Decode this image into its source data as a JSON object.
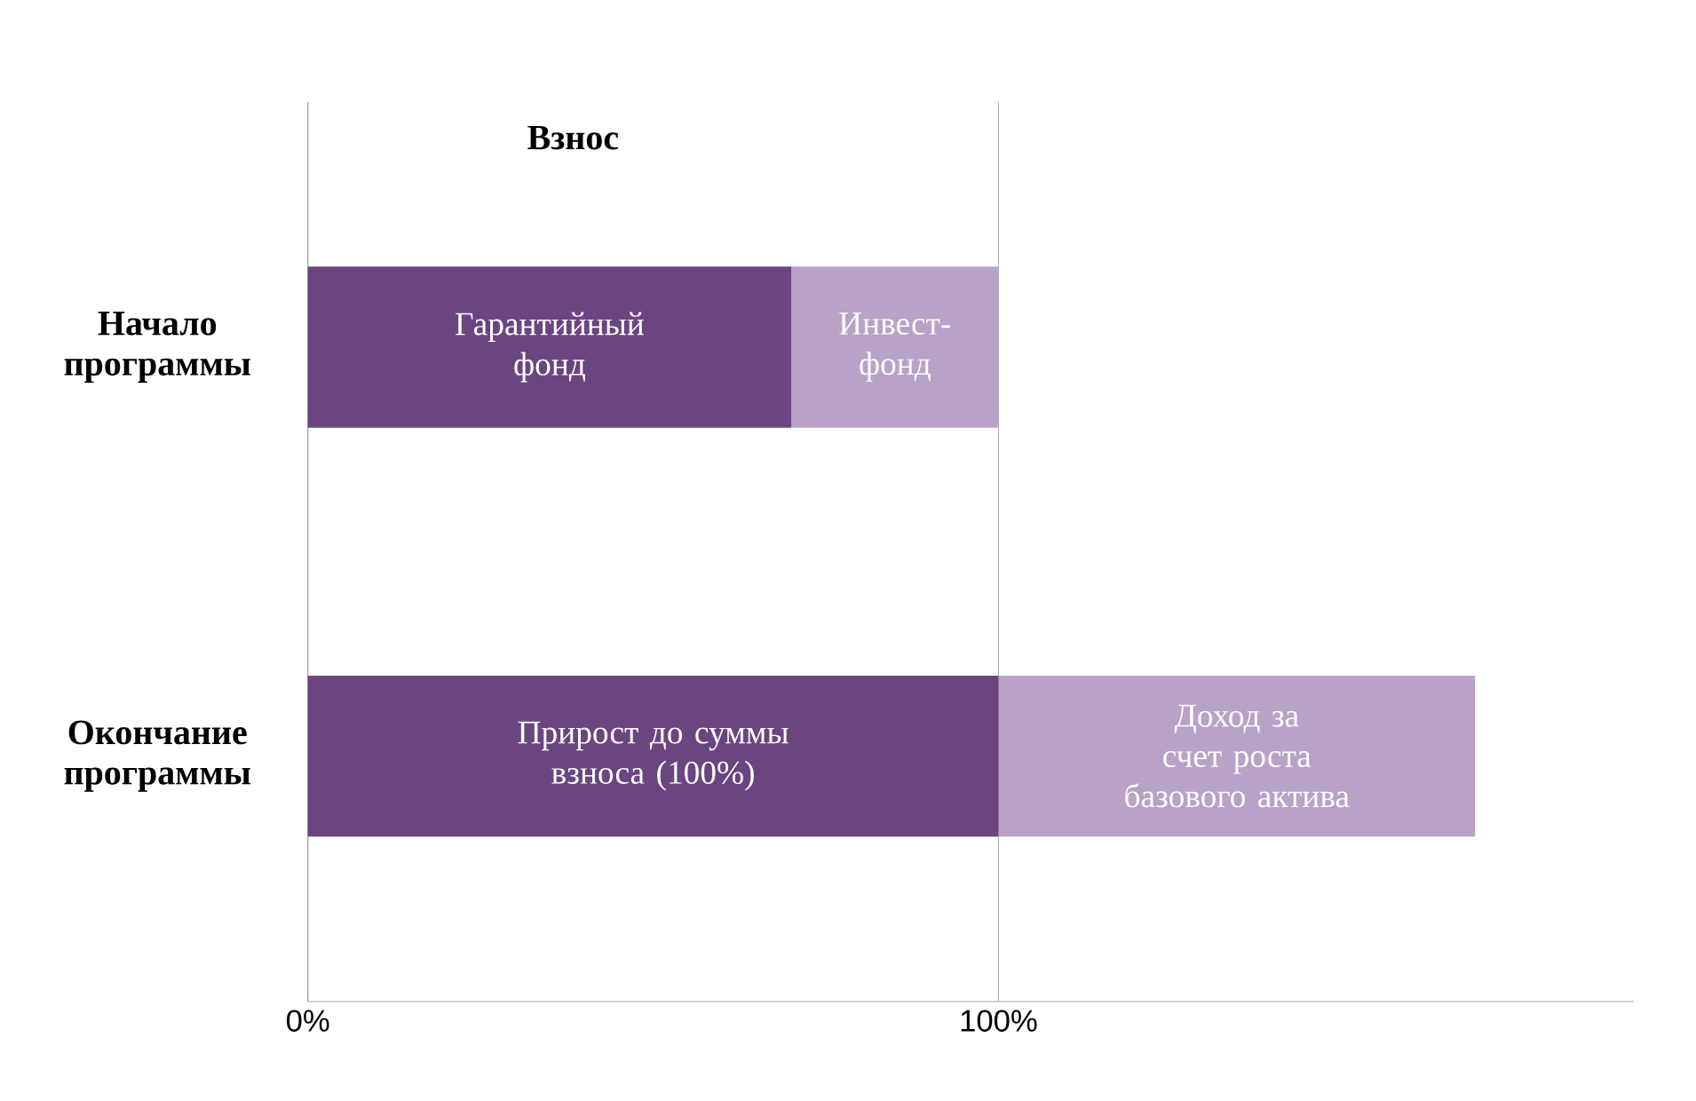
{
  "chart_data": {
    "type": "bar",
    "orientation": "horizontal",
    "stacked": true,
    "title": "Взнос",
    "categories": [
      "Начало программы",
      "Окончание программы"
    ],
    "series": [
      {
        "color": "#6a4580",
        "values": [
          70,
          100
        ],
        "value_labels": [
          "Гарантийный фонд",
          "Прирост до суммы взноса (100%)"
        ]
      },
      {
        "color": "#b8a2c8",
        "values": [
          30,
          69
        ],
        "value_labels": [
          "Инвест-фонд",
          "Доход за счет роста базового актива"
        ]
      }
    ],
    "xlim": [
      0,
      192
    ],
    "xticks": [
      {
        "value": 0,
        "label": "0%"
      },
      {
        "value": 100,
        "label": "100%"
      }
    ],
    "grid": "x"
  }
}
